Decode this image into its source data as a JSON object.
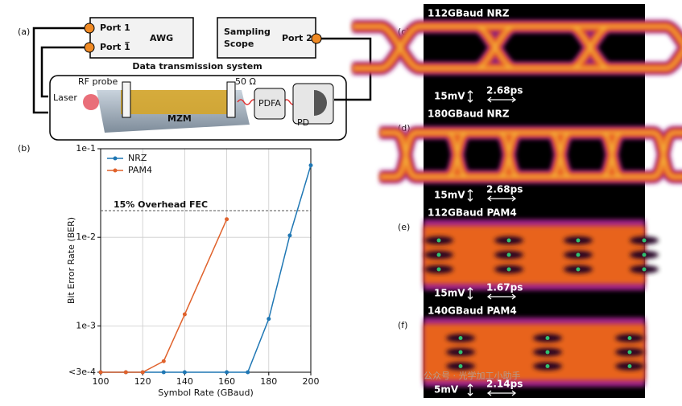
{
  "panel_labels": [
    "(a)",
    "(b)",
    "(c)",
    "(d)",
    "(e)",
    "(f)"
  ],
  "diagram": {
    "awg": {
      "title": "AWG",
      "port1": "Port 1",
      "port1bar": "Port 1̅"
    },
    "scope": {
      "title": [
        "Sampling",
        "Scope"
      ],
      "port": "Port 2"
    },
    "system": "Data transmission system",
    "rf_probe": "RF probe",
    "termination": "50 Ω",
    "laser": "Laser",
    "modulator": "MZM",
    "amplifier": "PDFA",
    "detector": "PD"
  },
  "chart_data": {
    "type": "line",
    "xlabel": "Symbol Rate (GBaud)",
    "ylabel": "Bit Error Rate (BER)",
    "xlim": [
      100,
      200
    ],
    "xticks": [
      100,
      120,
      140,
      160,
      180,
      200
    ],
    "ylim": [
      0.0003,
      0.1
    ],
    "yticks": [
      {
        "value": 0.0003,
        "label": "<3e-4"
      },
      {
        "value": 0.001,
        "label": "1e-3"
      },
      {
        "value": 0.01,
        "label": "1e-2"
      },
      {
        "value": 0.1,
        "label": "1e-1"
      }
    ],
    "log_y": true,
    "grid": true,
    "legend": "upper left",
    "annotation": {
      "text": "15% Overhead FEC",
      "value": 0.02
    },
    "series": [
      {
        "name": "NRZ",
        "color": "#1f77b4",
        "x": [
          100,
          112,
          120,
          130,
          140,
          160,
          170,
          180,
          190,
          200
        ],
        "values": [
          0.0003,
          0.0003,
          0.0003,
          0.0003,
          0.0003,
          0.0003,
          0.0003,
          0.0012,
          0.0105,
          0.065
        ]
      },
      {
        "name": "PAM4",
        "color": "#e0622c",
        "x": [
          100,
          112,
          120,
          130,
          140,
          160
        ],
        "values": [
          0.0003,
          0.0003,
          0.0003,
          0.0004,
          0.00135,
          0.016
        ]
      }
    ]
  },
  "eyes": [
    {
      "title": "112GBaud NRZ",
      "voltage": "15mV",
      "time": "2.68ps"
    },
    {
      "title": "180GBaud NRZ",
      "voltage": "15mV",
      "time": "2.68ps"
    },
    {
      "title": "112GBaud PAM4",
      "voltage": "15mV",
      "time": "1.67ps"
    },
    {
      "title": "140GBaud PAM4",
      "voltage": "5mV",
      "time": "2.14ps"
    }
  ],
  "watermark": "公众号 · 光学加工小助手"
}
